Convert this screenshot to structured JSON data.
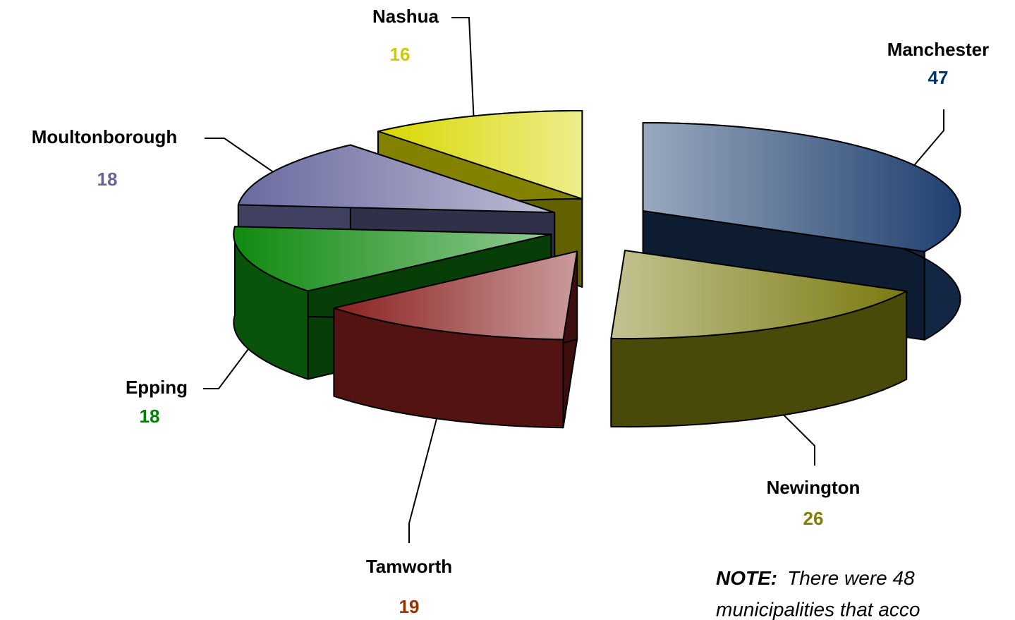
{
  "chart_data": {
    "type": "pie3d",
    "categories": [
      "Manchester",
      "Newington",
      "Tamworth",
      "Epping",
      "Moultonborough",
      "Nashua"
    ],
    "values": [
      47,
      26,
      19,
      18,
      18,
      16
    ],
    "colors": [
      "#1f3f6f",
      "#7a7a10",
      "#8a2020",
      "#108a10",
      "#6a6aa0",
      "#d8d800"
    ],
    "label_colors": [
      "#003366",
      "#808000",
      "#993300",
      "#008000",
      "#666699",
      "#cccc00"
    ]
  },
  "note": {
    "lead": "NOTE:",
    "lines": [
      "There were 48",
      "municipalities that acco"
    ]
  }
}
